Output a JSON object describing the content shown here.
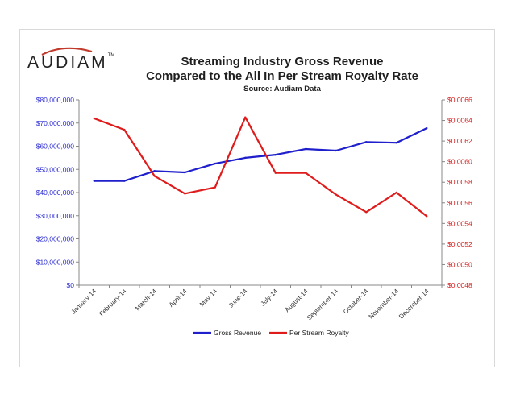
{
  "logo": {
    "text": "AUDIAM",
    "tm": "TM",
    "swoosh_color": "#c0392b"
  },
  "chart_data": {
    "type": "line",
    "title": "Streaming Industry Gross Revenue",
    "subtitle": "Compared to the All In Per Stream Royalty Rate",
    "source": "Source: Audiam Data",
    "categories": [
      "January-14",
      "February-14",
      "March-14",
      "April-14",
      "May-14",
      "June-14",
      "July-14",
      "August-14",
      "September-14",
      "October-14",
      "November-14",
      "December-14"
    ],
    "series": [
      {
        "name": "Gross Revenue",
        "axis": "left",
        "color": "#1f1fcc",
        "values": [
          45000000,
          45000000,
          49300000,
          48700000,
          52500000,
          55000000,
          56300000,
          58800000,
          58100000,
          61800000,
          61500000,
          67800000
        ]
      },
      {
        "name": "Per Stream Royalty",
        "axis": "right",
        "color": "#e01b1b",
        "values": [
          0.00642,
          0.00631,
          0.00586,
          0.00569,
          0.00575,
          0.00643,
          0.00589,
          0.00589,
          0.00568,
          0.00551,
          0.0057,
          0.00547
        ]
      }
    ],
    "y_left": {
      "min": 0,
      "max": 80000000,
      "step": 10000000,
      "color": "#2b2bd6",
      "tick_labels": [
        "$0",
        "$10,000,000",
        "$20,000,000",
        "$30,000,000",
        "$40,000,000",
        "$50,000,000",
        "$60,000,000",
        "$70,000,000",
        "$80,000,000"
      ]
    },
    "y_right": {
      "min": 0.0048,
      "max": 0.0066,
      "step": 0.0002,
      "color": "#d42020",
      "tick_labels": [
        "$0.0048",
        "$0.0050",
        "$0.0052",
        "$0.0054",
        "$0.0056",
        "$0.0058",
        "$0.0060",
        "$0.0062",
        "$0.0064",
        "$0.0066"
      ]
    },
    "legend": {
      "position": "bottom"
    },
    "grid": false
  }
}
